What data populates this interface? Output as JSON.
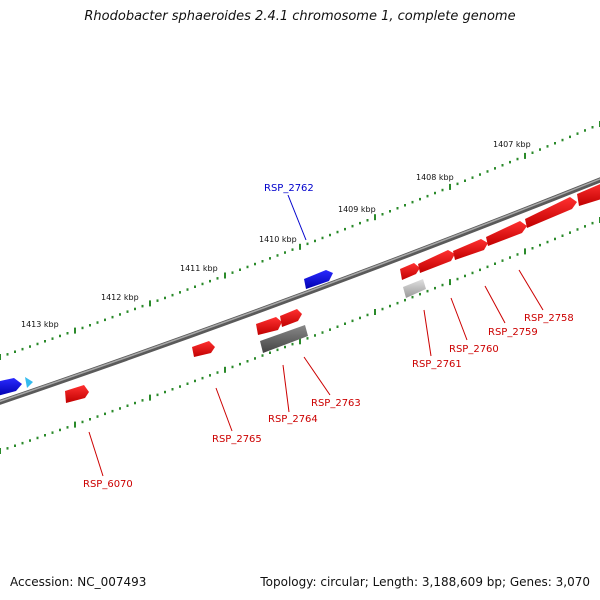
{
  "title": "Rhodobacter sphaeroides 2.4.1 chromosome 1, complete genome",
  "accession": "Accession: NC_007493",
  "summary": "Topology: circular; Length: 3,188,609 bp; Genes: 3,070",
  "colors": {
    "forward_gene": "#ee0000",
    "reverse_gene": "#0000ee",
    "pseudo_gene": "#666666",
    "light_gene": "#bbbbbb",
    "cyan_marker": "#33bbee",
    "tick": "#2a8a2a",
    "backbone": "#7a7a7a"
  },
  "scale_labels": [
    "1407 kbp",
    "1408 kbp",
    "1409 kbp",
    "1410 kbp",
    "1411 kbp",
    "1412 kbp",
    "1413 kbp"
  ],
  "gene_labels": [
    {
      "id": "RSP_2762",
      "color": "#0000cc"
    },
    {
      "id": "RSP_2758",
      "color": "#cc0000"
    },
    {
      "id": "RSP_2759",
      "color": "#cc0000"
    },
    {
      "id": "RSP_2760",
      "color": "#cc0000"
    },
    {
      "id": "RSP_2761",
      "color": "#cc0000"
    },
    {
      "id": "RSP_2763",
      "color": "#cc0000"
    },
    {
      "id": "RSP_2764",
      "color": "#cc0000"
    },
    {
      "id": "RSP_2765",
      "color": "#cc0000"
    },
    {
      "id": "RSP_6070",
      "color": "#cc0000"
    }
  ]
}
